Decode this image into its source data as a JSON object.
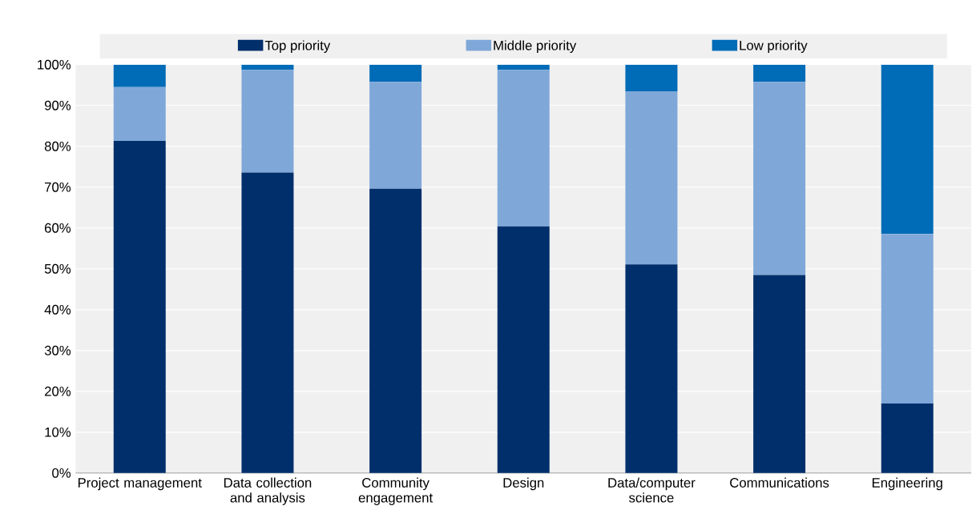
{
  "chart_data": {
    "type": "bar",
    "stacked": true,
    "categories": [
      "Project management",
      "Data collection and analysis",
      "Community engagement",
      "Design",
      "Data/computer science",
      "Communications",
      "Engineering"
    ],
    "series": [
      {
        "name": "Top priority",
        "color": "#002f6c",
        "values": [
          81.3,
          73.6,
          69.6,
          60.4,
          51.1,
          48.5,
          17.0
        ]
      },
      {
        "name": "Middle priority",
        "color": "#7fa8d9",
        "values": [
          13.2,
          25.1,
          26.2,
          38.3,
          42.3,
          47.3,
          41.5
        ]
      },
      {
        "name": "Low priority",
        "color": "#006bb6",
        "values": [
          5.5,
          1.3,
          4.2,
          1.3,
          6.6,
          4.2,
          41.5
        ]
      }
    ],
    "ylim": [
      0,
      100
    ],
    "yticks": [
      {
        "value": 0,
        "label": "0%"
      },
      {
        "value": 10,
        "label": "10%"
      },
      {
        "value": 20,
        "label": "20%"
      },
      {
        "value": 30,
        "label": "30%"
      },
      {
        "value": 40,
        "label": "40%"
      },
      {
        "value": 50,
        "label": "50%"
      },
      {
        "value": 60,
        "label": "60%"
      },
      {
        "value": 70,
        "label": "70%"
      },
      {
        "value": 80,
        "label": "80%"
      },
      {
        "value": 90,
        "label": "90%"
      },
      {
        "value": 100,
        "label": "100%"
      }
    ],
    "grid": "y",
    "legend": "top"
  }
}
